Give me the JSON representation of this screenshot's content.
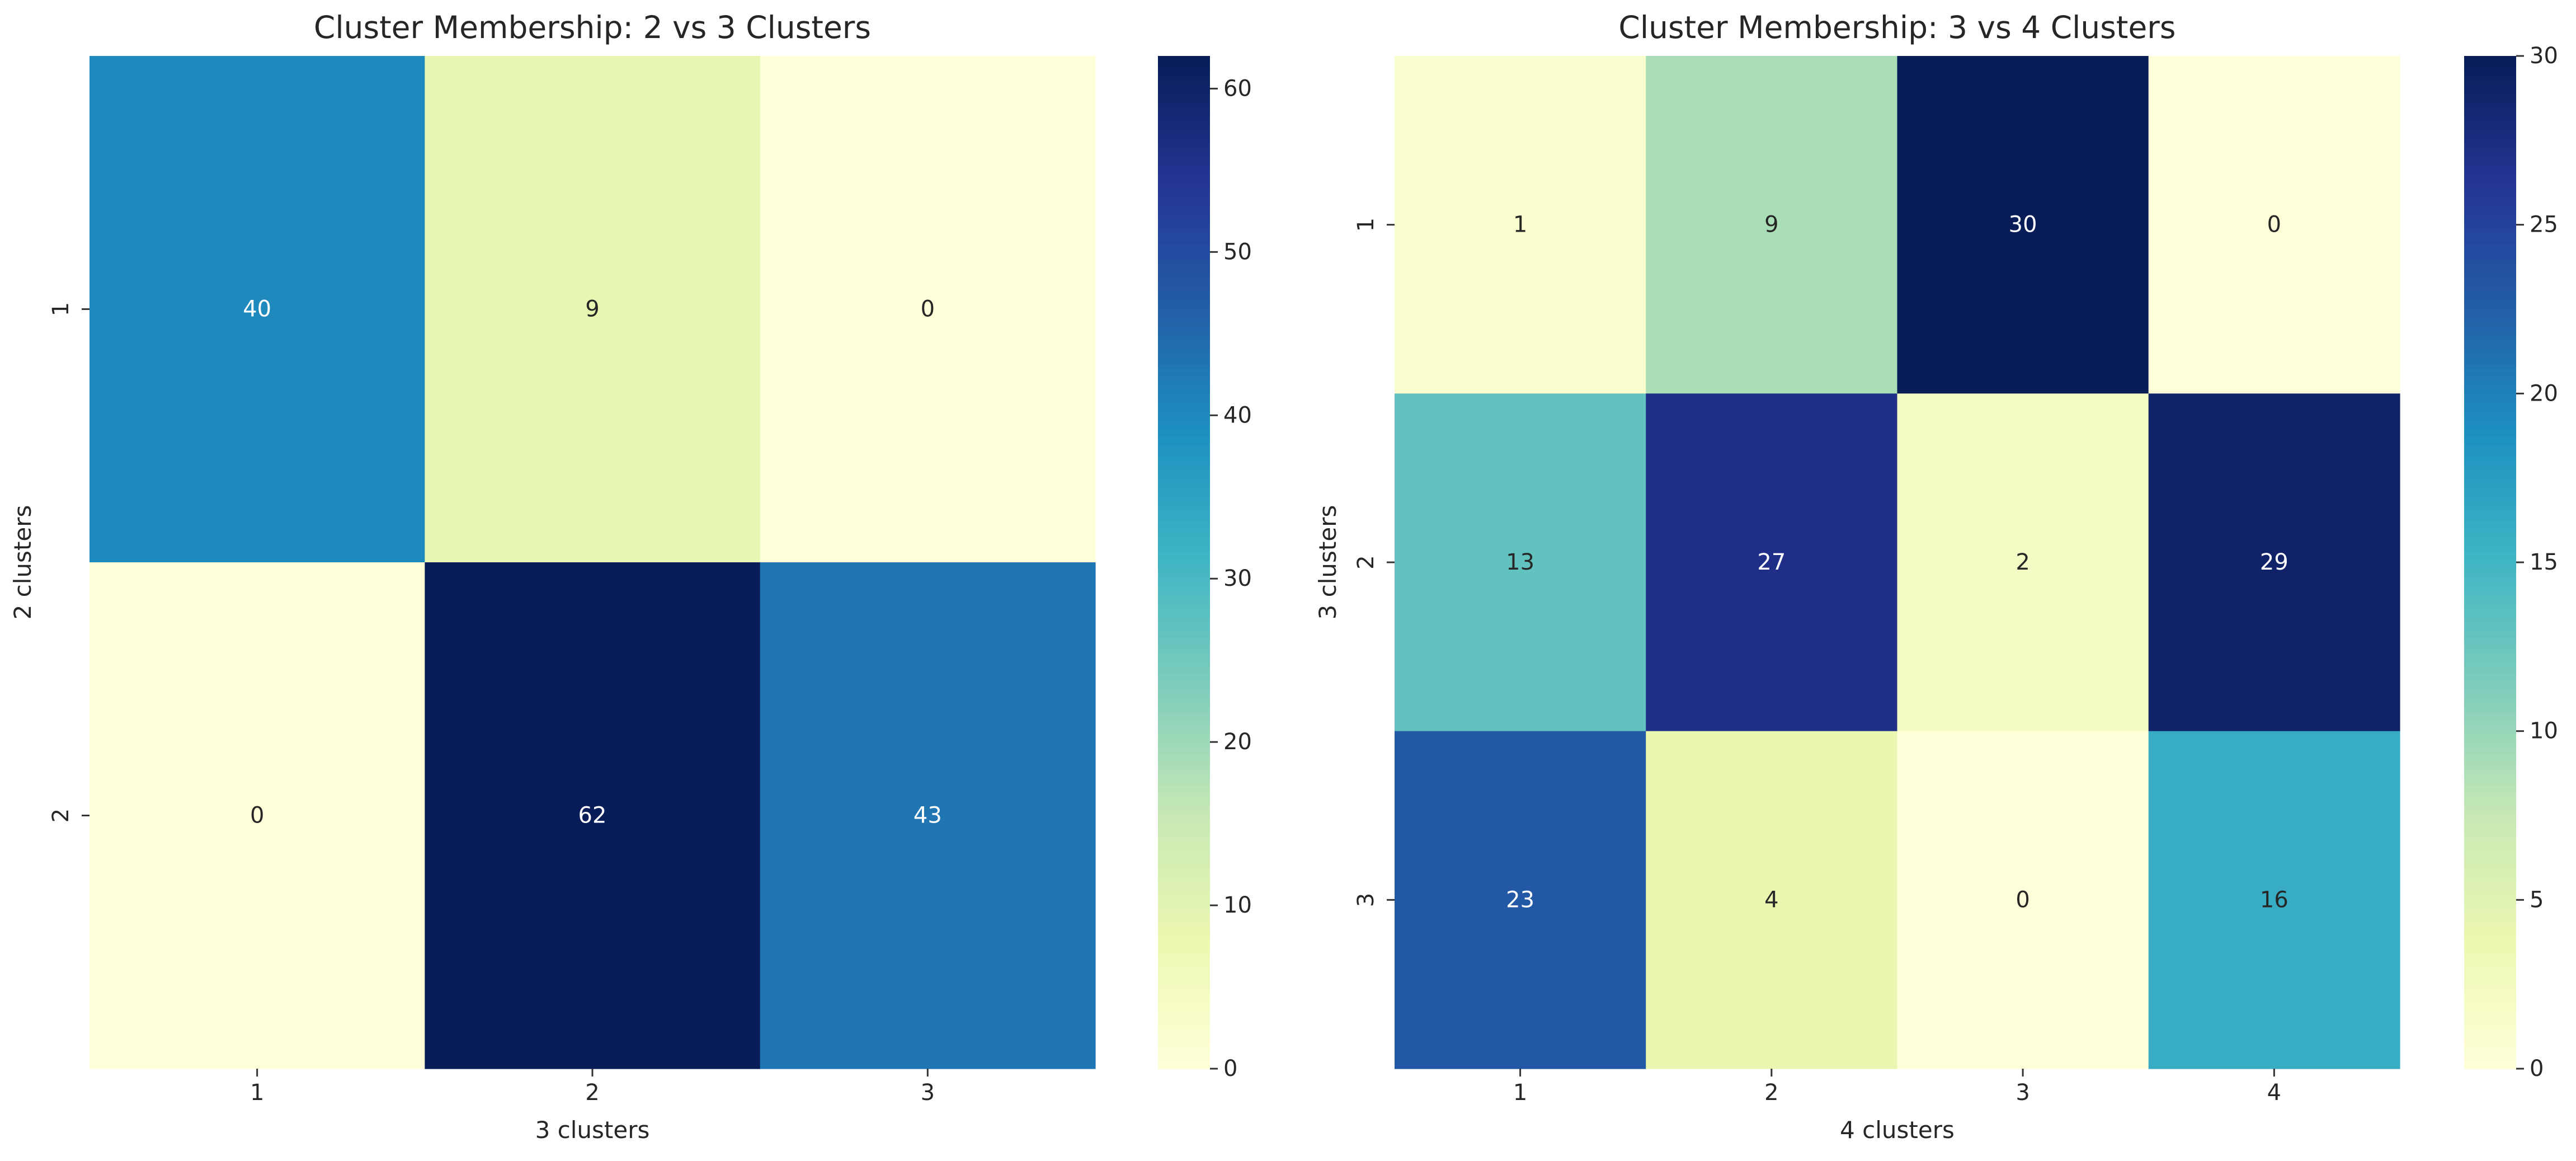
{
  "chart_data": [
    {
      "type": "heatmap",
      "title": "Cluster Membership: 2 vs 3 Clusters",
      "xlabel": "3 clusters",
      "ylabel": "2 clusters",
      "x_categories": [
        "1",
        "2",
        "3"
      ],
      "y_categories": [
        "1",
        "2"
      ],
      "values": [
        [
          40,
          9,
          0
        ],
        [
          0,
          62,
          43
        ]
      ],
      "annotate": true,
      "colormap": "YlGnBu",
      "colorbar": {
        "min": 0,
        "max": 62,
        "ticks": [
          0,
          10,
          20,
          30,
          40,
          50,
          60
        ]
      }
    },
    {
      "type": "heatmap",
      "title": "Cluster Membership: 3 vs 4 Clusters",
      "xlabel": "4 clusters",
      "ylabel": "3 clusters",
      "x_categories": [
        "1",
        "2",
        "3",
        "4"
      ],
      "y_categories": [
        "1",
        "2",
        "3"
      ],
      "values": [
        [
          1,
          9,
          30,
          0
        ],
        [
          13,
          27,
          2,
          29
        ],
        [
          23,
          4,
          0,
          16
        ]
      ],
      "annotate": true,
      "colormap": "YlGnBu",
      "colorbar": {
        "min": 0,
        "max": 30,
        "ticks": [
          0,
          5,
          10,
          15,
          20,
          25,
          30
        ]
      }
    }
  ]
}
